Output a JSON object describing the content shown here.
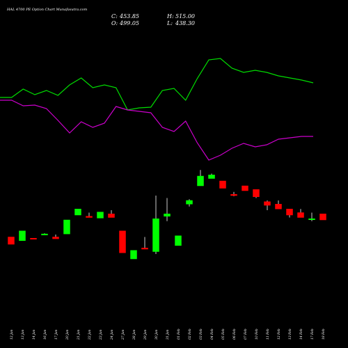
{
  "chart_data": {
    "type": "candlestick",
    "title": "HAL 4700 PE Option Chart Munafasutra.com",
    "ohlc_readout": {
      "open_label": "O:",
      "open": "499.05",
      "high_label": "H:",
      "high": "515.00",
      "close_label": "C:",
      "close": "453.85",
      "low_label": "L:",
      "low": "438.30"
    },
    "categories": [
      "12 Jan",
      "13 Jan",
      "14 Jan",
      "16 Jan",
      "17 Jan",
      "20 Jan",
      "21 Jan",
      "22 Jan",
      "23 Jan",
      "24 Jan",
      "27 Jan",
      "28 Jan",
      "29 Jan",
      "30 Jan",
      "31 Jan",
      "01 Feb",
      "02 Feb",
      "03 Feb",
      "04 Feb",
      "05 Feb",
      "06 Feb",
      "07 Feb",
      "10 Feb",
      "11 Feb",
      "12 Feb",
      "13 Feb",
      "14 Feb",
      "17 Feb",
      "18 Feb"
    ],
    "candles": [
      {
        "o": 74,
        "h": 74,
        "l": 68,
        "c": 68
      },
      {
        "o": 71,
        "h": 79,
        "l": 71,
        "c": 79
      },
      {
        "o": 73,
        "h": 73,
        "l": 72.5,
        "c": 72.5
      },
      {
        "o": 76,
        "h": 77,
        "l": 76,
        "c": 76.5
      },
      {
        "o": 74,
        "h": 76,
        "l": 72.5,
        "c": 72.5
      },
      {
        "o": 76.5,
        "h": 88,
        "l": 76.5,
        "c": 88
      },
      {
        "o": 92,
        "h": 97,
        "l": 92,
        "c": 97
      },
      {
        "o": 91,
        "h": 94,
        "l": 90,
        "c": 90
      },
      {
        "o": 89.5,
        "h": 94.5,
        "l": 89.5,
        "c": 94.5
      },
      {
        "o": 93,
        "h": 96,
        "l": 90,
        "c": 90
      },
      {
        "o": 79,
        "h": 79,
        "l": 61,
        "c": 61
      },
      {
        "o": 56,
        "h": 63,
        "l": 56,
        "c": 63
      },
      {
        "o": 65,
        "h": 74,
        "l": 64,
        "c": 64
      },
      {
        "o": 62,
        "h": 108,
        "l": 60,
        "c": 89
      },
      {
        "o": 91,
        "h": 106,
        "l": 87,
        "c": 93
      },
      {
        "o": 67,
        "h": 75,
        "l": 67,
        "c": 75
      },
      {
        "o": 101,
        "h": 105,
        "l": 99,
        "c": 104
      },
      {
        "o": 116,
        "h": 129,
        "l": 116,
        "c": 124
      },
      {
        "o": 122,
        "h": 126,
        "l": 122,
        "c": 125
      },
      {
        "o": 120,
        "h": 120,
        "l": 114,
        "c": 114
      },
      {
        "o": 109,
        "h": 111,
        "l": 107.5,
        "c": 108
      },
      {
        "o": 116,
        "h": 116,
        "l": 112,
        "c": 112
      },
      {
        "o": 113,
        "h": 113,
        "l": 106,
        "c": 107
      },
      {
        "o": 103,
        "h": 104,
        "l": 96,
        "c": 100
      },
      {
        "o": 101,
        "h": 104,
        "l": 97,
        "c": 97
      },
      {
        "o": 97,
        "h": 97,
        "l": 90,
        "c": 92
      },
      {
        "o": 94,
        "h": 97,
        "l": 90,
        "c": 90
      },
      {
        "o": 89,
        "h": 94,
        "l": 87,
        "c": 89
      },
      {
        "o": 93,
        "h": 93,
        "l": 88,
        "c": 88
      }
    ],
    "green_line": [
      60,
      60,
      48,
      56,
      50,
      57,
      42,
      32,
      46,
      42,
      46,
      78,
      75,
      74,
      50,
      47,
      64,
      33,
      6,
      4,
      18,
      24,
      21,
      24,
      29,
      32,
      35,
      39
    ],
    "magenta_line": [
      64,
      64,
      72,
      71,
      76,
      93,
      111,
      95,
      103,
      97,
      73,
      78,
      80,
      82,
      103,
      109,
      94,
      125,
      150,
      143,
      133,
      126,
      131,
      128,
      120,
      118,
      116,
      116
    ],
    "colors": {
      "background": "#000000",
      "up": "#00ff00",
      "down": "#ff0000",
      "green_line": "#00dd00",
      "magenta_line": "#cc00cc",
      "text": "#ffffff"
    }
  }
}
